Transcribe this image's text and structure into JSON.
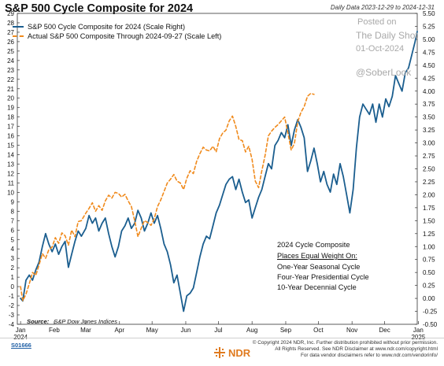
{
  "header": {
    "title": "S&P 500 Cycle Composite for 2024",
    "date_range": "Daily Data 2023-12-29 to 2024-12-31"
  },
  "legend": {
    "items": [
      {
        "label": "S&P 500 Cycle Composite for 2024 (Scale Right)",
        "color": "#1b5e8f",
        "style": "solid"
      },
      {
        "label": "Actual S&P 500 Composite Through 2024-09-27 (Scale Left)",
        "color": "#f08a1c",
        "style": "dashed"
      }
    ]
  },
  "watermark": {
    "posted_on": "Posted on",
    "source_name": "The Daily Shot",
    "date": "01-Oct-2024",
    "handle": "@SoberLook"
  },
  "annotation": {
    "line1": "2024 Cycle Composite",
    "line2": "Places Equal Weight On:",
    "line3": "One-Year Seasonal Cycle",
    "line4": "Four-Year Presidential Cycle",
    "line5": "10-Year Decennial Cycle"
  },
  "footer": {
    "source_label": "Source:",
    "source_text": "S&P Dow Jones Indices",
    "chart_code": "S01666",
    "copyright_1": "© Copyright 2024 NDR, Inc. Further distribution prohibited without prior permission.",
    "copyright_2": "All Rights Reserved. See NDR Disclaimer at www.ndr.com/copyright.html",
    "copyright_3": "For data vendor disclaimers refer to www.ndr.com/vendorinfo/",
    "logo_text": "NDR"
  },
  "chart_data": {
    "type": "line",
    "title": "S&P 500 Cycle Composite for 2024",
    "x_ticks": [
      {
        "date": "2024-01-01",
        "label": "Jan",
        "sublabel": "2024"
      },
      {
        "date": "2024-02-01",
        "label": "Feb"
      },
      {
        "date": "2024-03-01",
        "label": "Mar"
      },
      {
        "date": "2024-04-01",
        "label": "Apr"
      },
      {
        "date": "2024-05-01",
        "label": "May"
      },
      {
        "date": "2024-06-01",
        "label": "Jun"
      },
      {
        "date": "2024-07-01",
        "label": "Jul"
      },
      {
        "date": "2024-08-01",
        "label": "Aug"
      },
      {
        "date": "2024-09-01",
        "label": "Sep"
      },
      {
        "date": "2024-10-01",
        "label": "Oct"
      },
      {
        "date": "2024-11-01",
        "label": "Nov"
      },
      {
        "date": "2024-12-01",
        "label": "Dec"
      },
      {
        "date": "2025-01-01",
        "label": "Jan",
        "sublabel": "2025"
      }
    ],
    "xlim": [
      "2023-12-29",
      "2024-12-31"
    ],
    "y_left": {
      "min": -4,
      "max": 29,
      "step": 1
    },
    "y_right": {
      "min": -0.5,
      "max": 5.5,
      "step": 0.25
    },
    "y_right_labels": [
      "-0.50",
      "-0.25",
      "0.00",
      "0.25",
      "0.50",
      "0.75",
      "1.00",
      "1.25",
      "1.50",
      "1.75",
      "2.00",
      "2.25",
      "2.50",
      "2.75",
      "3.00",
      "3.25",
      "3.50",
      "3.75",
      "4.00",
      "4.25",
      "4.50",
      "4.75",
      "5.00",
      "5.25",
      "5.50"
    ],
    "grid": false,
    "series": [
      {
        "name": "S&P 500 Cycle Composite for 2024 (Scale Right)",
        "axis": "right",
        "color": "#1b5e8f",
        "style": "solid",
        "points": [
          [
            "2024-01-01",
            0.0
          ],
          [
            "2024-01-03",
            -0.05
          ],
          [
            "2024-01-06",
            0.35
          ],
          [
            "2024-01-09",
            0.45
          ],
          [
            "2024-01-12",
            0.35
          ],
          [
            "2024-01-15",
            0.55
          ],
          [
            "2024-01-18",
            0.7
          ],
          [
            "2024-01-21",
            1.0
          ],
          [
            "2024-01-24",
            1.25
          ],
          [
            "2024-01-27",
            1.05
          ],
          [
            "2024-01-30",
            0.9
          ],
          [
            "2024-02-02",
            1.05
          ],
          [
            "2024-02-05",
            0.85
          ],
          [
            "2024-02-08",
            1.0
          ],
          [
            "2024-02-11",
            1.1
          ],
          [
            "2024-02-14",
            0.6
          ],
          [
            "2024-02-17",
            0.85
          ],
          [
            "2024-02-20",
            1.1
          ],
          [
            "2024-02-23",
            1.3
          ],
          [
            "2024-02-26",
            1.2
          ],
          [
            "2024-03-01",
            1.35
          ],
          [
            "2024-03-04",
            1.6
          ],
          [
            "2024-03-07",
            1.45
          ],
          [
            "2024-03-10",
            1.55
          ],
          [
            "2024-03-13",
            1.3
          ],
          [
            "2024-03-16",
            1.45
          ],
          [
            "2024-03-19",
            1.55
          ],
          [
            "2024-03-22",
            1.25
          ],
          [
            "2024-03-25",
            1.0
          ],
          [
            "2024-03-28",
            0.8
          ],
          [
            "2024-03-31",
            1.0
          ],
          [
            "2024-04-03",
            1.3
          ],
          [
            "2024-04-06",
            1.4
          ],
          [
            "2024-04-09",
            1.55
          ],
          [
            "2024-04-12",
            1.35
          ],
          [
            "2024-04-15",
            1.45
          ],
          [
            "2024-04-18",
            1.7
          ],
          [
            "2024-04-21",
            1.55
          ],
          [
            "2024-04-24",
            1.3
          ],
          [
            "2024-04-27",
            1.45
          ],
          [
            "2024-04-30",
            1.65
          ],
          [
            "2024-05-03",
            1.45
          ],
          [
            "2024-05-06",
            1.6
          ],
          [
            "2024-05-09",
            1.35
          ],
          [
            "2024-05-12",
            1.05
          ],
          [
            "2024-05-15",
            0.9
          ],
          [
            "2024-05-18",
            0.65
          ],
          [
            "2024-05-21",
            0.3
          ],
          [
            "2024-05-24",
            0.45
          ],
          [
            "2024-05-27",
            0.1
          ],
          [
            "2024-05-30",
            -0.25
          ],
          [
            "2024-06-02",
            0.05
          ],
          [
            "2024-06-05",
            0.1
          ],
          [
            "2024-06-08",
            0.2
          ],
          [
            "2024-06-11",
            0.5
          ],
          [
            "2024-06-14",
            0.8
          ],
          [
            "2024-06-17",
            1.05
          ],
          [
            "2024-06-20",
            1.2
          ],
          [
            "2024-06-23",
            1.15
          ],
          [
            "2024-06-26",
            1.4
          ],
          [
            "2024-06-29",
            1.65
          ],
          [
            "2024-07-02",
            1.8
          ],
          [
            "2024-07-05",
            2.0
          ],
          [
            "2024-07-08",
            2.2
          ],
          [
            "2024-07-11",
            2.3
          ],
          [
            "2024-07-14",
            2.35
          ],
          [
            "2024-07-17",
            2.1
          ],
          [
            "2024-07-20",
            2.3
          ],
          [
            "2024-07-23",
            2.05
          ],
          [
            "2024-07-26",
            1.85
          ],
          [
            "2024-07-29",
            1.9
          ],
          [
            "2024-08-01",
            1.55
          ],
          [
            "2024-08-04",
            1.75
          ],
          [
            "2024-08-07",
            1.95
          ],
          [
            "2024-08-10",
            2.1
          ],
          [
            "2024-08-13",
            2.35
          ],
          [
            "2024-08-16",
            2.6
          ],
          [
            "2024-08-19",
            2.5
          ],
          [
            "2024-08-22",
            2.95
          ],
          [
            "2024-08-25",
            3.05
          ],
          [
            "2024-08-28",
            3.2
          ],
          [
            "2024-08-31",
            3.1
          ],
          [
            "2024-09-03",
            3.35
          ],
          [
            "2024-09-06",
            2.95
          ],
          [
            "2024-09-09",
            3.25
          ],
          [
            "2024-09-12",
            3.45
          ],
          [
            "2024-09-15",
            3.3
          ],
          [
            "2024-09-18",
            3.1
          ],
          [
            "2024-09-21",
            2.45
          ],
          [
            "2024-09-24",
            2.65
          ],
          [
            "2024-09-27",
            2.9
          ],
          [
            "2024-09-30",
            2.6
          ],
          [
            "2024-10-03",
            2.25
          ],
          [
            "2024-10-06",
            2.45
          ],
          [
            "2024-10-09",
            2.2
          ],
          [
            "2024-10-12",
            2.05
          ],
          [
            "2024-10-15",
            2.4
          ],
          [
            "2024-10-18",
            2.2
          ],
          [
            "2024-10-21",
            2.6
          ],
          [
            "2024-10-24",
            2.35
          ],
          [
            "2024-10-27",
            2.0
          ],
          [
            "2024-10-30",
            1.65
          ],
          [
            "2024-11-02",
            2.1
          ],
          [
            "2024-11-05",
            2.9
          ],
          [
            "2024-11-08",
            3.5
          ],
          [
            "2024-11-11",
            3.75
          ],
          [
            "2024-11-14",
            3.65
          ],
          [
            "2024-11-17",
            3.55
          ],
          [
            "2024-11-20",
            3.75
          ],
          [
            "2024-11-23",
            3.4
          ],
          [
            "2024-11-26",
            3.75
          ],
          [
            "2024-11-29",
            3.5
          ],
          [
            "2024-12-02",
            3.85
          ],
          [
            "2024-12-05",
            3.7
          ],
          [
            "2024-12-08",
            3.9
          ],
          [
            "2024-12-11",
            4.3
          ],
          [
            "2024-12-14",
            4.15
          ],
          [
            "2024-12-17",
            4.0
          ],
          [
            "2024-12-20",
            4.35
          ],
          [
            "2024-12-23",
            4.45
          ],
          [
            "2024-12-26",
            4.7
          ],
          [
            "2024-12-29",
            4.95
          ],
          [
            "2024-12-31",
            5.15
          ]
        ]
      },
      {
        "name": "Actual S&P 500 Composite Through 2024-09-27 (Scale Left)",
        "axis": "left",
        "color": "#f08a1c",
        "style": "dashed",
        "points": [
          [
            "2024-01-01",
            0.0
          ],
          [
            "2024-01-03",
            -1.5
          ],
          [
            "2024-01-06",
            -0.8
          ],
          [
            "2024-01-09",
            0.3
          ],
          [
            "2024-01-12",
            1.5
          ],
          [
            "2024-01-15",
            1.2
          ],
          [
            "2024-01-18",
            2.3
          ],
          [
            "2024-01-21",
            3.5
          ],
          [
            "2024-01-24",
            3.0
          ],
          [
            "2024-01-27",
            3.9
          ],
          [
            "2024-01-30",
            4.2
          ],
          [
            "2024-02-02",
            5.2
          ],
          [
            "2024-02-05",
            4.6
          ],
          [
            "2024-02-08",
            5.7
          ],
          [
            "2024-02-11",
            5.4
          ],
          [
            "2024-02-14",
            4.4
          ],
          [
            "2024-02-17",
            6.0
          ],
          [
            "2024-02-20",
            5.3
          ],
          [
            "2024-02-23",
            6.9
          ],
          [
            "2024-02-26",
            7.0
          ],
          [
            "2024-03-01",
            7.8
          ],
          [
            "2024-03-04",
            8.3
          ],
          [
            "2024-03-07",
            8.9
          ],
          [
            "2024-03-10",
            8.0
          ],
          [
            "2024-03-13",
            8.6
          ],
          [
            "2024-03-16",
            8.1
          ],
          [
            "2024-03-19",
            9.1
          ],
          [
            "2024-03-22",
            9.7
          ],
          [
            "2024-03-25",
            9.4
          ],
          [
            "2024-03-28",
            10.0
          ],
          [
            "2024-03-31",
            9.9
          ],
          [
            "2024-04-03",
            9.5
          ],
          [
            "2024-04-06",
            9.8
          ],
          [
            "2024-04-09",
            9.1
          ],
          [
            "2024-04-12",
            8.5
          ],
          [
            "2024-04-15",
            7.0
          ],
          [
            "2024-04-18",
            5.3
          ],
          [
            "2024-04-21",
            6.2
          ],
          [
            "2024-04-24",
            7.0
          ],
          [
            "2024-04-27",
            6.8
          ],
          [
            "2024-04-30",
            6.5
          ],
          [
            "2024-05-03",
            7.2
          ],
          [
            "2024-05-06",
            8.5
          ],
          [
            "2024-05-09",
            9.2
          ],
          [
            "2024-05-12",
            10.1
          ],
          [
            "2024-05-15",
            11.0
          ],
          [
            "2024-05-18",
            11.4
          ],
          [
            "2024-05-21",
            11.9
          ],
          [
            "2024-05-24",
            11.2
          ],
          [
            "2024-05-27",
            11.0
          ],
          [
            "2024-05-30",
            10.3
          ],
          [
            "2024-06-02",
            11.5
          ],
          [
            "2024-06-05",
            12.3
          ],
          [
            "2024-06-08",
            12.0
          ],
          [
            "2024-06-11",
            13.3
          ],
          [
            "2024-06-14",
            14.1
          ],
          [
            "2024-06-17",
            14.8
          ],
          [
            "2024-06-20",
            14.5
          ],
          [
            "2024-06-23",
            14.4
          ],
          [
            "2024-06-26",
            14.9
          ],
          [
            "2024-06-29",
            14.3
          ],
          [
            "2024-07-02",
            15.7
          ],
          [
            "2024-07-05",
            16.3
          ],
          [
            "2024-07-08",
            16.6
          ],
          [
            "2024-07-11",
            17.6
          ],
          [
            "2024-07-14",
            18.1
          ],
          [
            "2024-07-17",
            17.0
          ],
          [
            "2024-07-20",
            15.6
          ],
          [
            "2024-07-23",
            15.5
          ],
          [
            "2024-07-26",
            14.3
          ],
          [
            "2024-07-29",
            14.9
          ],
          [
            "2024-08-01",
            13.5
          ],
          [
            "2024-08-04",
            11.2
          ],
          [
            "2024-08-07",
            10.5
          ],
          [
            "2024-08-10",
            12.3
          ],
          [
            "2024-08-13",
            13.9
          ],
          [
            "2024-08-16",
            16.0
          ],
          [
            "2024-08-19",
            16.5
          ],
          [
            "2024-08-22",
            16.9
          ],
          [
            "2024-08-25",
            17.2
          ],
          [
            "2024-08-28",
            17.6
          ],
          [
            "2024-08-31",
            18.0
          ],
          [
            "2024-09-03",
            16.3
          ],
          [
            "2024-09-06",
            14.5
          ],
          [
            "2024-09-09",
            15.2
          ],
          [
            "2024-09-12",
            17.5
          ],
          [
            "2024-09-15",
            18.5
          ],
          [
            "2024-09-18",
            19.1
          ],
          [
            "2024-09-21",
            20.2
          ],
          [
            "2024-09-24",
            20.5
          ],
          [
            "2024-09-27",
            20.4
          ]
        ]
      }
    ]
  }
}
